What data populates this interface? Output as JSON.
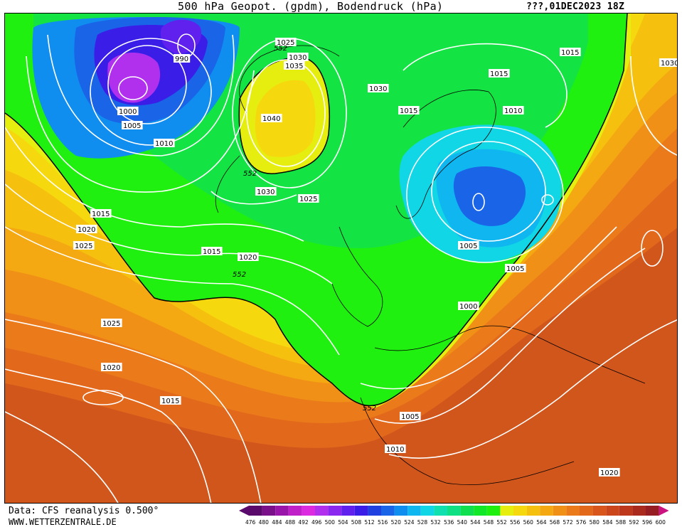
{
  "header": {
    "title": "500 hPa Geopot. (gpdm), Bodendruck (hPa)",
    "date": "???,01DEC2023 18Z"
  },
  "footer": {
    "data_source": "Data: CFS reanalysis 0.500°",
    "website": "WWW.WETTERZENTRALE.DE"
  },
  "legend": {
    "values": [
      "476",
      "480",
      "484",
      "488",
      "492",
      "496",
      "500",
      "504",
      "508",
      "512",
      "516",
      "520",
      "524",
      "528",
      "532",
      "536",
      "540",
      "544",
      "548",
      "552",
      "556",
      "560",
      "564",
      "568",
      "572",
      "576",
      "580",
      "584",
      "588",
      "592",
      "596",
      "600"
    ],
    "colors": [
      "#5a0a6a",
      "#7a108a",
      "#9a16aa",
      "#c020c8",
      "#dc2ae0",
      "#b030ee",
      "#8a28f0",
      "#6020ee",
      "#3a1ee8",
      "#2040e0",
      "#1a64e8",
      "#108ef0",
      "#10b6f0",
      "#10d6e6",
      "#10e0b0",
      "#10e084",
      "#10e050",
      "#10e828",
      "#20f010",
      "#e6ee10",
      "#f6d80e",
      "#f6c00e",
      "#f4a812",
      "#f09016",
      "#ea7a1a",
      "#e2681c",
      "#d8561c",
      "#cc461c",
      "#be381c",
      "#aa2a1e",
      "#961e22",
      "#cc1480"
    ]
  },
  "map": {
    "contour_552_label": "552",
    "isobar_labels": [
      {
        "text": "990"
      },
      {
        "text": "1000"
      },
      {
        "text": "1005"
      },
      {
        "text": "1010"
      },
      {
        "text": "1015"
      },
      {
        "text": "1020"
      },
      {
        "text": "1025"
      },
      {
        "text": "1025"
      },
      {
        "text": "1030"
      },
      {
        "text": "1035"
      },
      {
        "text": "1040"
      },
      {
        "text": "1030"
      },
      {
        "text": "1025"
      },
      {
        "text": "1030"
      },
      {
        "text": "1015"
      },
      {
        "text": "1015"
      },
      {
        "text": "1015"
      },
      {
        "text": "1030"
      },
      {
        "text": "1010"
      },
      {
        "text": "1005"
      },
      {
        "text": "1005"
      },
      {
        "text": "1000"
      },
      {
        "text": "1015"
      },
      {
        "text": "1020"
      },
      {
        "text": "1025"
      },
      {
        "text": "1020"
      },
      {
        "text": "1015"
      },
      {
        "text": "1005"
      },
      {
        "text": "1010"
      },
      {
        "text": "1020"
      }
    ]
  }
}
